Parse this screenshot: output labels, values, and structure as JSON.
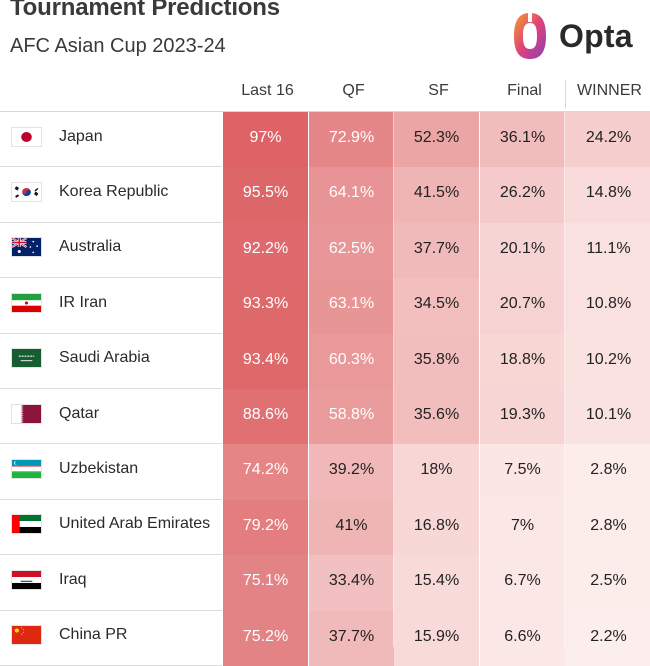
{
  "title": "Tournament Predictions",
  "subtitle": "AFC Asian Cup 2023-24",
  "logo_text": "Opta",
  "chart_data": {
    "type": "table",
    "title": "Tournament Predictions",
    "subtitle": "AFC Asian Cup 2023-24",
    "columns": [
      "Last 16",
      "QF",
      "SF",
      "Final",
      "WINNER"
    ],
    "rows": [
      {
        "team": "Japan",
        "flag": "japan-flag-icon",
        "values": [
          "97%",
          "72.9%",
          "52.3%",
          "36.1%",
          "24.2%"
        ],
        "numeric": [
          97,
          72.9,
          52.3,
          36.1,
          24.2
        ]
      },
      {
        "team": "Korea Republic",
        "flag": "korea-flag-icon",
        "values": [
          "95.5%",
          "64.1%",
          "41.5%",
          "26.2%",
          "14.8%"
        ],
        "numeric": [
          95.5,
          64.1,
          41.5,
          26.2,
          14.8
        ]
      },
      {
        "team": "Australia",
        "flag": "australia-flag-icon",
        "values": [
          "92.2%",
          "62.5%",
          "37.7%",
          "20.1%",
          "11.1%"
        ],
        "numeric": [
          92.2,
          62.5,
          37.7,
          20.1,
          11.1
        ]
      },
      {
        "team": "IR Iran",
        "flag": "iran-flag-icon",
        "values": [
          "93.3%",
          "63.1%",
          "34.5%",
          "20.7%",
          "10.8%"
        ],
        "numeric": [
          93.3,
          63.1,
          34.5,
          20.7,
          10.8
        ]
      },
      {
        "team": "Saudi Arabia",
        "flag": "saudi-flag-icon",
        "values": [
          "93.4%",
          "60.3%",
          "35.8%",
          "18.8%",
          "10.2%"
        ],
        "numeric": [
          93.4,
          60.3,
          35.8,
          18.8,
          10.2
        ]
      },
      {
        "team": "Qatar",
        "flag": "qatar-flag-icon",
        "values": [
          "88.6%",
          "58.8%",
          "35.6%",
          "19.3%",
          "10.1%"
        ],
        "numeric": [
          88.6,
          58.8,
          35.6,
          19.3,
          10.1
        ]
      },
      {
        "team": "Uzbekistan",
        "flag": "uzbekistan-flag-icon",
        "values": [
          "74.2%",
          "39.2%",
          "18%",
          "7.5%",
          "2.8%"
        ],
        "numeric": [
          74.2,
          39.2,
          18,
          7.5,
          2.8
        ]
      },
      {
        "team": "United Arab Emirates",
        "flag": "uae-flag-icon",
        "values": [
          "79.2%",
          "41%",
          "16.8%",
          "7%",
          "2.8%"
        ],
        "numeric": [
          79.2,
          41,
          16.8,
          7,
          2.8
        ]
      },
      {
        "team": "Iraq",
        "flag": "iraq-flag-icon",
        "values": [
          "75.1%",
          "33.4%",
          "15.4%",
          "6.7%",
          "2.5%"
        ],
        "numeric": [
          75.1,
          33.4,
          15.4,
          6.7,
          2.5
        ]
      },
      {
        "team": "China PR",
        "flag": "china-flag-icon",
        "values": [
          "75.2%",
          "37.7%",
          "15.9%",
          "6.6%",
          "2.2%"
        ],
        "numeric": [
          75.2,
          37.7,
          15.9,
          6.6,
          2.2
        ]
      }
    ],
    "color_scale": {
      "low": "#fdf1ef",
      "high": "#dc5f62"
    }
  }
}
